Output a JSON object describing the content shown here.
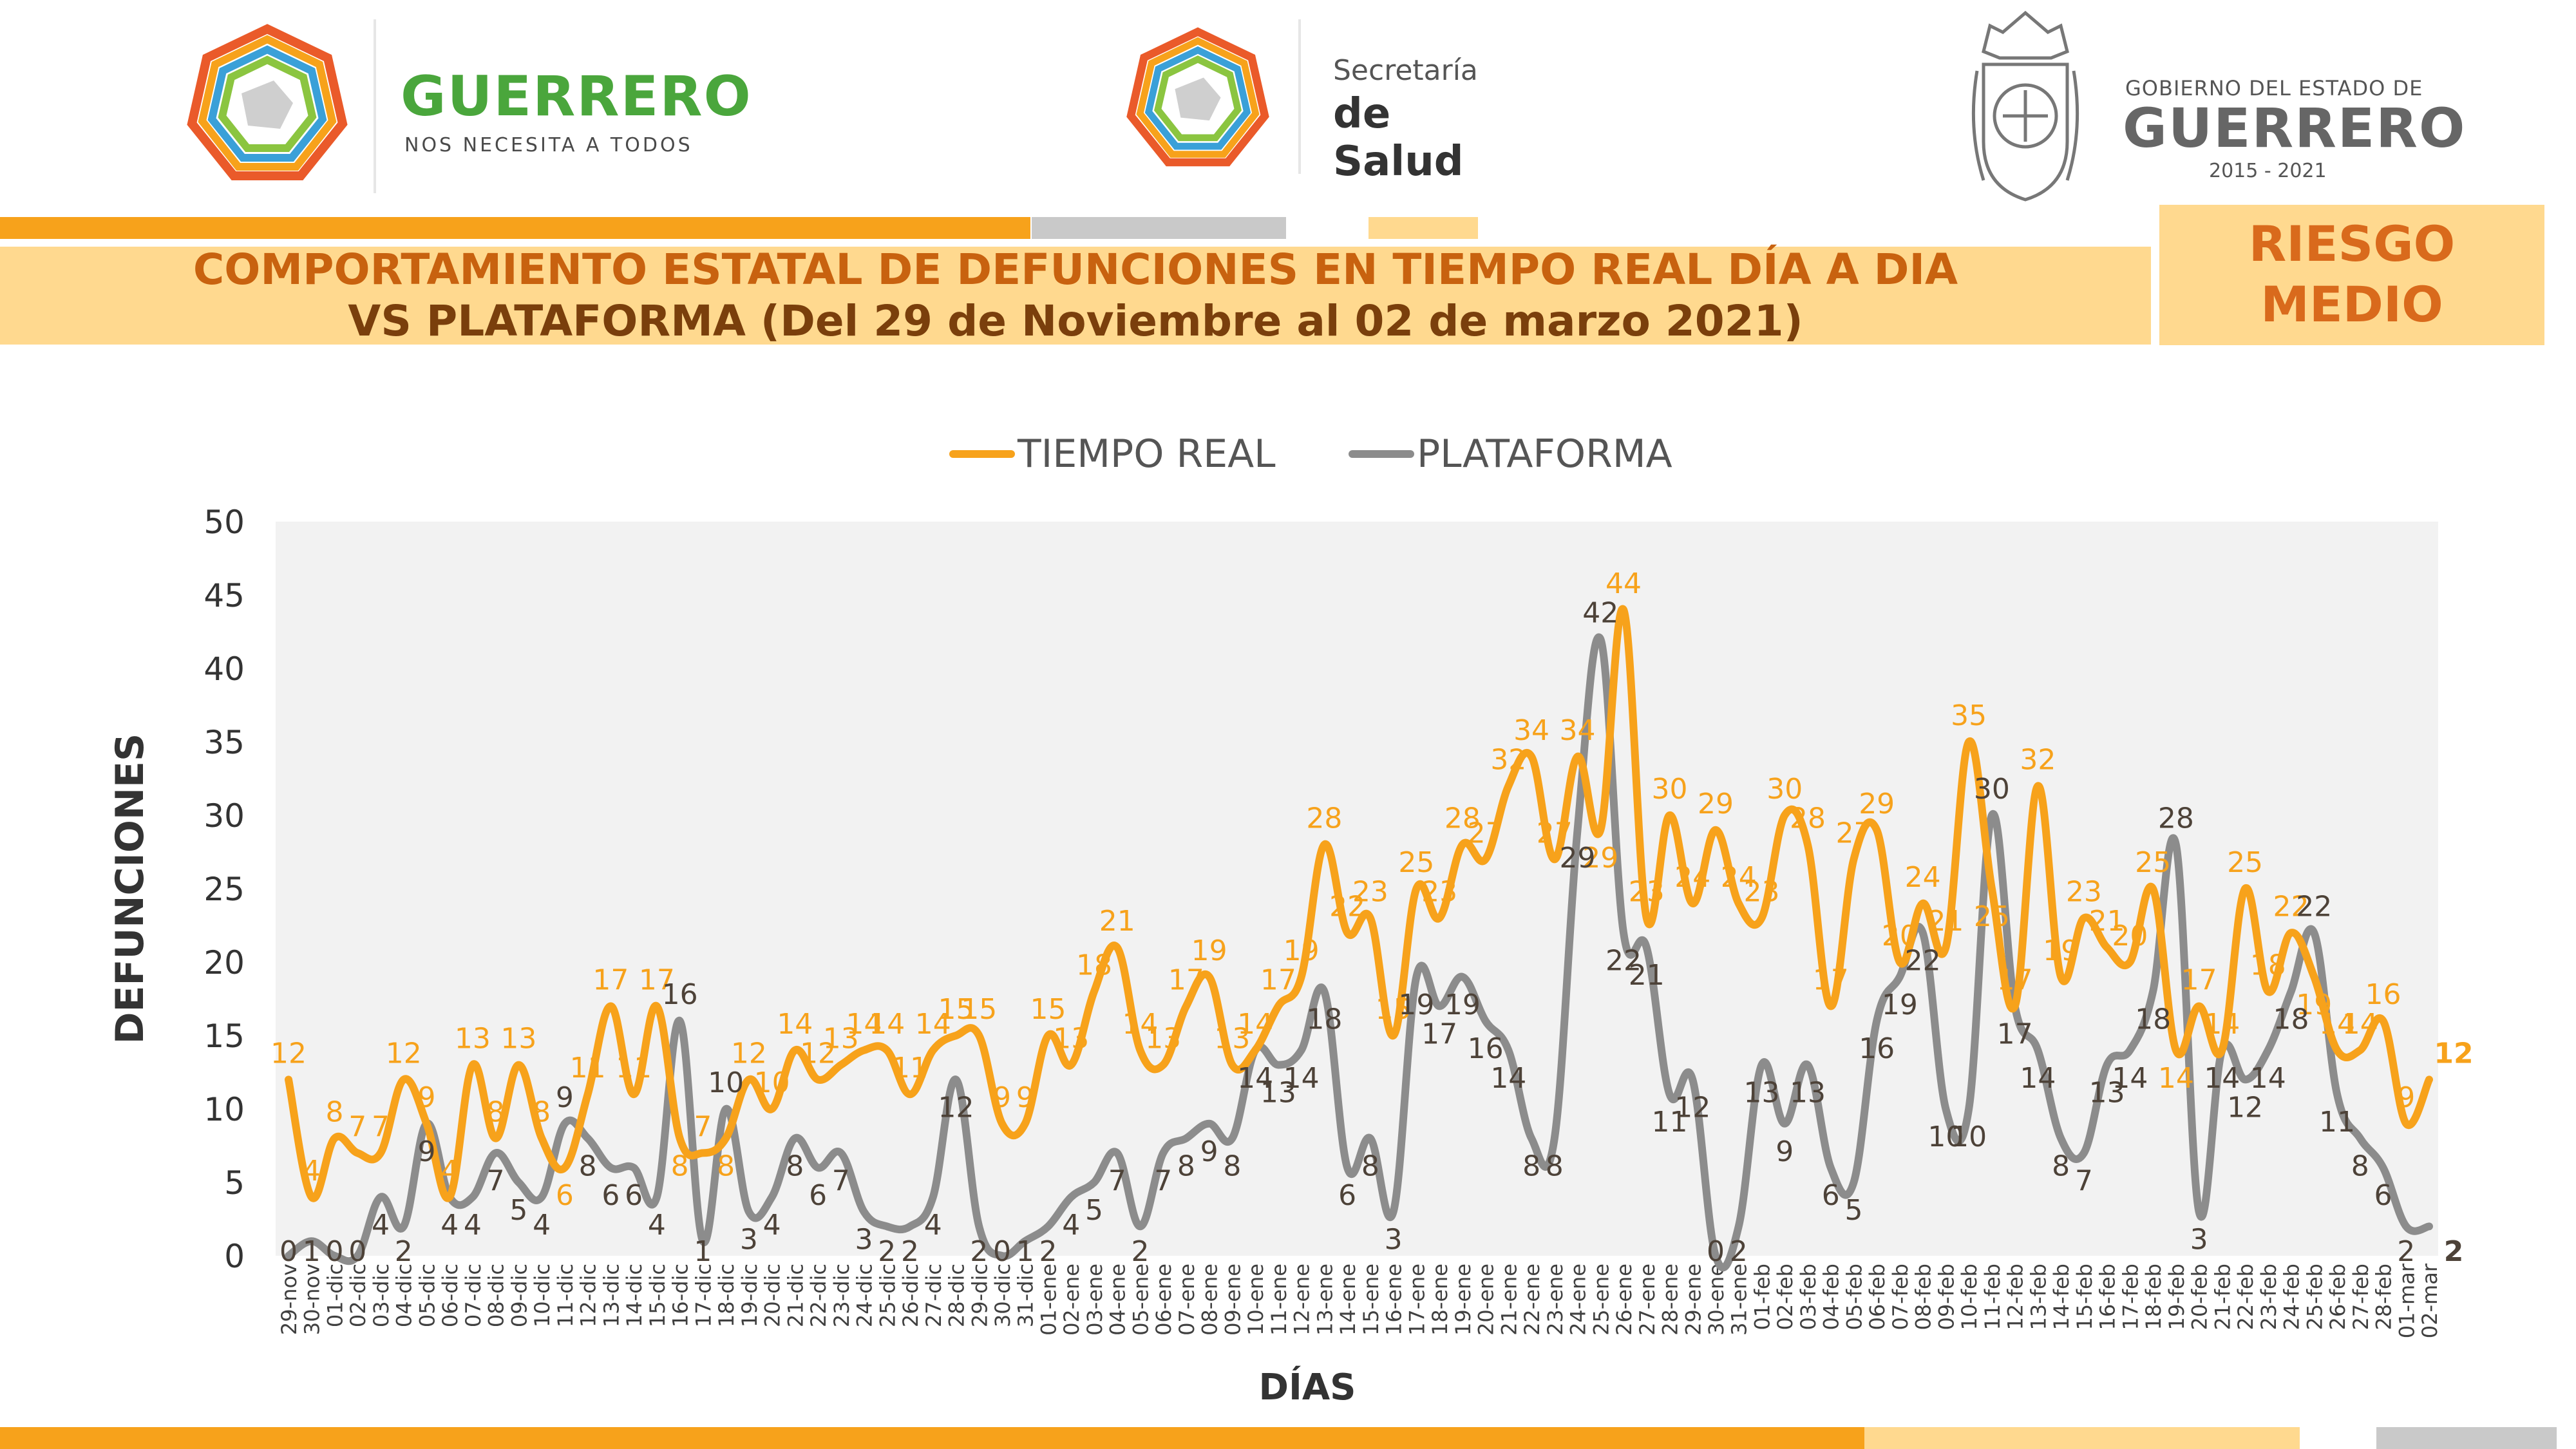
{
  "header": {
    "logo1": {
      "name": "GUERRERO",
      "tagline": "NOS NECESITA A TODOS"
    },
    "logo2": {
      "line1": "Secretaría",
      "line2": "de Salud"
    },
    "logo3": {
      "line1": "GOBIERNO DEL ESTADO DE",
      "line2": "GUERRERO",
      "line3": "2015 - 2021"
    }
  },
  "title": {
    "line1": "COMPORTAMIENTO ESTATAL DE DEFUNCIONES EN TIEMPO REAL DÍA A DIA",
    "line2": "VS PLATAFORMA   (Del 29 de Noviembre al 02 de marzo 2021)"
  },
  "risk": {
    "line1": "RIESGO",
    "line2": "MEDIO"
  },
  "colors": {
    "orange": "#f7a21b",
    "gray": "#8c8c8c",
    "title_text": "#c8620f",
    "title_text_2": "#7a3f0c",
    "band": "#ffd98f",
    "gray_bar": "#c9c9c9",
    "plot_bg": "#f2f2f2",
    "gray_label": "#4d4238"
  },
  "chart_data": {
    "type": "line",
    "ylabel": "DEFUNCIONES",
    "xlabel": "DÍAS",
    "ylim": [
      0,
      50
    ],
    "yticks": [
      0,
      5,
      10,
      15,
      20,
      25,
      30,
      35,
      40,
      45,
      50
    ],
    "grid": false,
    "legend": "top-center",
    "categories": [
      "29-nov",
      "30-nov",
      "01-dic",
      "02-dic",
      "03-dic",
      "04-dic",
      "05-dic",
      "06-dic",
      "07-dic",
      "08-dic",
      "09-dic",
      "10-dic",
      "11-dic",
      "12-dic",
      "13-dic",
      "14-dic",
      "15-dic",
      "16-dic",
      "17-dic",
      "18-dic",
      "19-dic",
      "20-dic",
      "21-dic",
      "22-dic",
      "23-dic",
      "24-dic",
      "25-dic",
      "26-dic",
      "27-dic",
      "28-dic",
      "29-dic",
      "30-dic",
      "31-dic",
      "01-ene",
      "02-ene",
      "03-ene",
      "04-ene",
      "05-ene",
      "06-ene",
      "07-ene",
      "08-ene",
      "09-ene",
      "10-ene",
      "11-ene",
      "12-ene",
      "13-ene",
      "14-ene",
      "15-ene",
      "16-ene",
      "17-ene",
      "18-ene",
      "19-ene",
      "20-ene",
      "21-ene",
      "22-ene",
      "23-ene",
      "24-ene",
      "25-ene",
      "26-ene",
      "27-ene",
      "28-ene",
      "29-ene",
      "30-ene",
      "31-ene",
      "01-feb",
      "02-feb",
      "03-feb",
      "04-feb",
      "05-feb",
      "06-feb",
      "07-feb",
      "08-feb",
      "09-feb",
      "10-feb",
      "11-feb",
      "12-feb",
      "13-feb",
      "14-feb",
      "15-feb",
      "16-feb",
      "17-feb",
      "18-feb",
      "19-feb",
      "20-feb",
      "21-feb",
      "22-feb",
      "23-feb",
      "24-feb",
      "25-feb",
      "26-feb",
      "27-feb",
      "28-feb",
      "01-mar",
      "02-mar"
    ],
    "series": [
      {
        "name": "TIEMPO REAL",
        "color": "#f7a21b",
        "values": [
          12,
          4,
          8,
          7,
          7,
          12,
          9,
          4,
          13,
          8,
          13,
          8,
          6,
          11,
          17,
          11,
          17,
          8,
          7,
          8,
          12,
          10,
          14,
          12,
          13,
          14,
          14,
          11,
          14,
          15,
          15,
          9,
          9,
          15,
          13,
          18,
          21,
          14,
          13,
          17,
          19,
          13,
          14,
          17,
          19,
          28,
          22,
          23,
          15,
          25,
          23,
          28,
          27,
          32,
          34,
          27,
          34,
          29,
          44,
          23,
          30,
          24,
          29,
          24,
          23,
          30,
          28,
          17,
          27,
          29,
          20,
          24,
          21,
          35,
          25,
          17,
          32,
          19,
          23,
          21,
          20,
          25,
          14,
          17,
          14,
          25,
          18,
          22,
          19,
          14,
          14,
          16,
          9,
          12
        ]
      },
      {
        "name": "PLATAFORMA",
        "color": "#8c8c8c",
        "values": [
          0,
          1,
          0,
          0,
          4,
          2,
          9,
          4,
          4,
          7,
          5,
          4,
          9,
          8,
          6,
          6,
          4,
          16,
          1,
          10,
          3,
          4,
          8,
          6,
          7,
          3,
          2,
          2,
          4,
          12,
          2,
          0,
          1,
          2,
          4,
          5,
          7,
          2,
          7,
          8,
          9,
          8,
          14,
          13,
          14,
          18,
          6,
          8,
          3,
          19,
          17,
          19,
          16,
          14,
          8,
          8,
          29,
          42,
          22,
          21,
          11,
          12,
          0,
          2,
          13,
          9,
          13,
          6,
          5,
          16,
          19,
          22,
          10,
          10,
          30,
          17,
          14,
          8,
          7,
          13,
          14,
          18,
          28,
          3,
          14,
          12,
          14,
          18,
          22,
          11,
          8,
          6,
          2,
          2
        ]
      }
    ],
    "first_values": {
      "TIEMPO REAL": 12,
      "PLATAFORMA": 0
    }
  }
}
